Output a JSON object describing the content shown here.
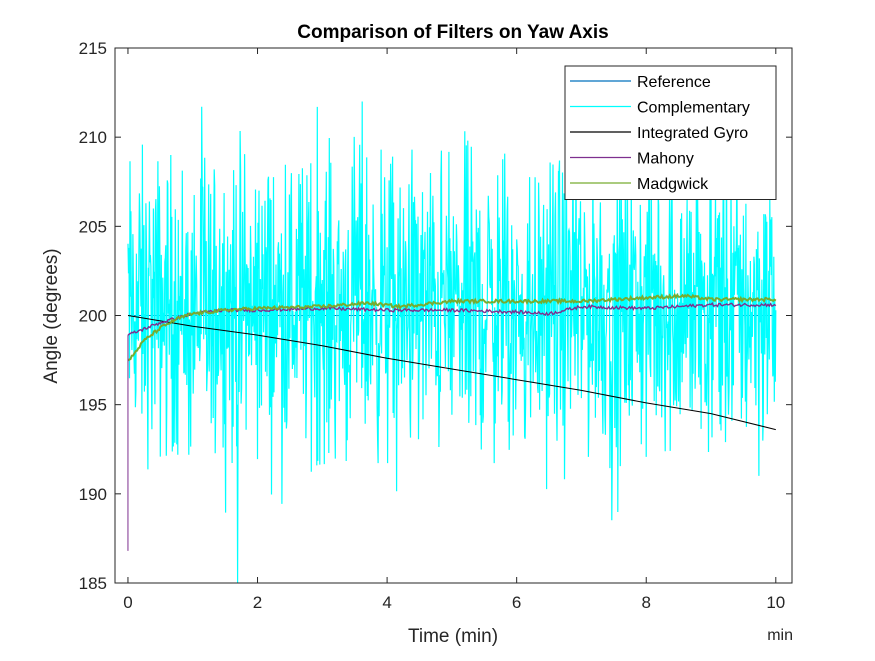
{
  "colors": {
    "reference": "#0072BD",
    "complementary": "#00FFFF",
    "integrated_gyro": "#000000",
    "mahony": "#7E2F8E",
    "madgwick": "#77AC30"
  },
  "chart_data": {
    "type": "line",
    "title": "Comparison of Filters on Yaw Axis",
    "xlabel": "Time (min)",
    "x_unit_label": "min",
    "ylabel": "Angle (degrees)",
    "xlim": [
      -0.2,
      10.25
    ],
    "ylim": [
      185,
      215
    ],
    "xticks": [
      0,
      2,
      4,
      6,
      8,
      10
    ],
    "yticks": [
      185,
      190,
      195,
      200,
      205,
      210,
      215
    ],
    "grid": false,
    "legend_position": "top-right",
    "series": [
      {
        "name": "Reference",
        "color": "#0072BD",
        "x": [
          0,
          10
        ],
        "y": [
          200,
          200
        ]
      },
      {
        "name": "Complementary",
        "color": "#00FFFF",
        "style": "noise band",
        "x": [
          0,
          10
        ],
        "center": [
          200.5,
          200.5
        ],
        "typical_min": 194,
        "typical_max": 207,
        "extreme_min": 185,
        "extreme_max": 212
      },
      {
        "name": "Integrated Gyro",
        "color": "#000000",
        "x": [
          0,
          1,
          2,
          3,
          4,
          5,
          6,
          7,
          8,
          9,
          10
        ],
        "y": [
          200.0,
          199.4,
          198.9,
          198.3,
          197.6,
          197.0,
          196.4,
          195.8,
          195.1,
          194.5,
          193.6
        ]
      },
      {
        "name": "Mahony",
        "color": "#7E2F8E",
        "x": [
          0,
          0.5,
          1,
          1.5,
          2,
          3,
          4,
          5,
          6,
          6.5,
          7,
          8,
          9,
          10
        ],
        "y": [
          198.9,
          199.6,
          200.1,
          200.3,
          200.3,
          200.4,
          200.3,
          200.3,
          200.2,
          200.1,
          200.5,
          200.4,
          200.6,
          200.6
        ]
      },
      {
        "name": "Madgwick",
        "color": "#77AC30",
        "x": [
          0,
          0.25,
          0.5,
          0.75,
          1,
          1.5,
          2,
          3,
          3.7,
          4.2,
          5,
          6,
          7,
          8,
          8.6,
          9,
          10
        ],
        "y": [
          197.4,
          198.6,
          199.3,
          199.8,
          200.1,
          200.3,
          200.4,
          200.5,
          200.7,
          200.5,
          200.8,
          200.8,
          200.8,
          201.0,
          201.1,
          200.9,
          200.9
        ]
      }
    ]
  }
}
